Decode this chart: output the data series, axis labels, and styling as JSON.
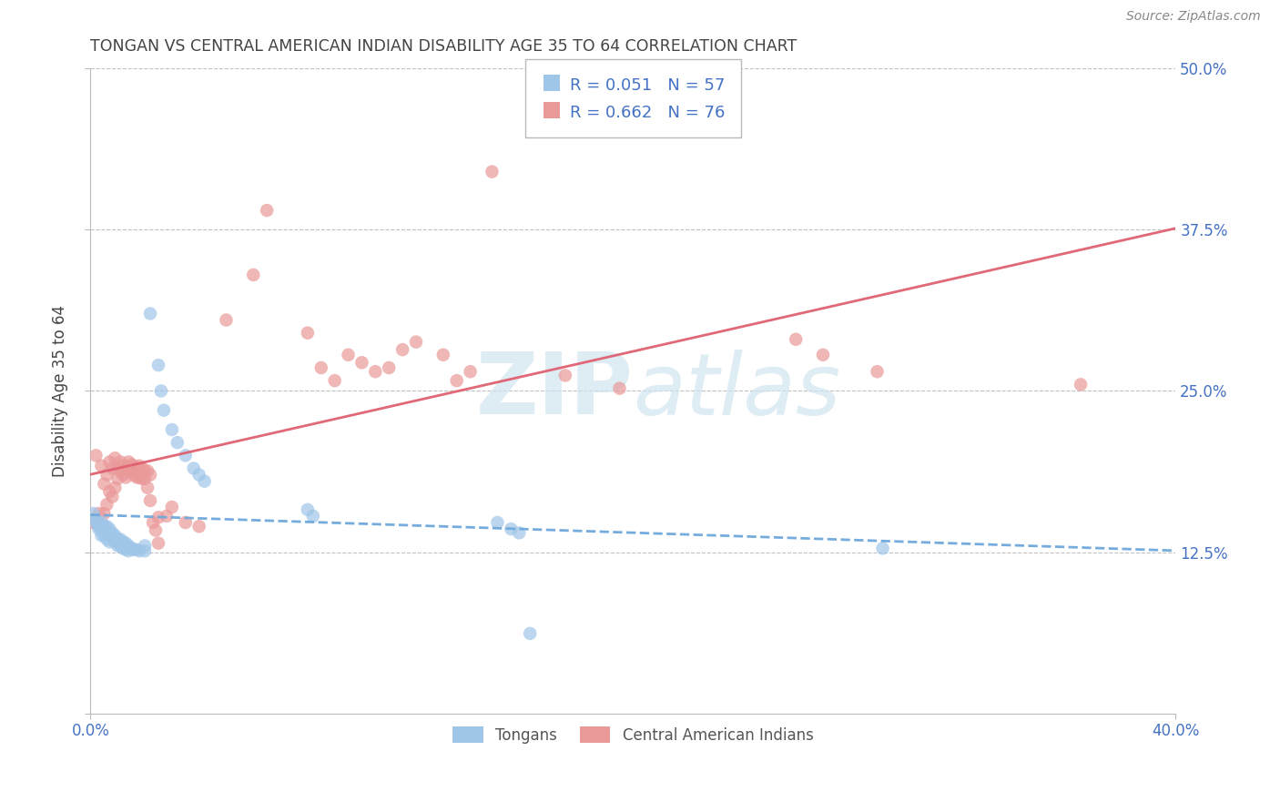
{
  "title": "TONGAN VS CENTRAL AMERICAN INDIAN DISABILITY AGE 35 TO 64 CORRELATION CHART",
  "source": "Source: ZipAtlas.com",
  "ylabel": "Disability Age 35 to 64",
  "xmin": 0.0,
  "xmax": 0.4,
  "ymin": 0.0,
  "ymax": 0.5,
  "yticks": [
    0.0,
    0.125,
    0.25,
    0.375,
    0.5
  ],
  "ytick_labels": [
    "",
    "12.5%",
    "25.0%",
    "37.5%",
    "50.0%"
  ],
  "xticks": [
    0.0,
    0.4
  ],
  "xtick_labels": [
    "0.0%",
    "40.0%"
  ],
  "tongan_color": "#9fc5e8",
  "central_color": "#ea9999",
  "tongan_line_color": "#6fa8dc",
  "central_line_color": "#e06070",
  "background_color": "#ffffff",
  "grid_color": "#c0c0c0",
  "watermark_color": "#d0e4f0",
  "title_color": "#444444",
  "source_color": "#888888",
  "label_color": "#4472c4",
  "legend_label_color": "#4472c4",
  "tongan_points": [
    [
      0.001,
      0.155
    ],
    [
      0.002,
      0.15
    ],
    [
      0.002,
      0.148
    ],
    [
      0.003,
      0.148
    ],
    [
      0.003,
      0.145
    ],
    [
      0.003,
      0.143
    ],
    [
      0.004,
      0.148
    ],
    [
      0.004,
      0.143
    ],
    [
      0.004,
      0.138
    ],
    [
      0.005,
      0.145
    ],
    [
      0.005,
      0.142
    ],
    [
      0.005,
      0.138
    ],
    [
      0.006,
      0.145
    ],
    [
      0.006,
      0.14
    ],
    [
      0.006,
      0.135
    ],
    [
      0.007,
      0.143
    ],
    [
      0.007,
      0.138
    ],
    [
      0.007,
      0.133
    ],
    [
      0.008,
      0.14
    ],
    [
      0.008,
      0.136
    ],
    [
      0.009,
      0.138
    ],
    [
      0.009,
      0.133
    ],
    [
      0.01,
      0.135
    ],
    [
      0.01,
      0.13
    ],
    [
      0.011,
      0.135
    ],
    [
      0.011,
      0.13
    ],
    [
      0.012,
      0.133
    ],
    [
      0.012,
      0.128
    ],
    [
      0.013,
      0.132
    ],
    [
      0.013,
      0.127
    ],
    [
      0.014,
      0.13
    ],
    [
      0.014,
      0.126
    ],
    [
      0.015,
      0.128
    ],
    [
      0.015,
      0.128
    ],
    [
      0.016,
      0.127
    ],
    [
      0.017,
      0.127
    ],
    [
      0.018,
      0.126
    ],
    [
      0.02,
      0.126
    ],
    [
      0.02,
      0.13
    ],
    [
      0.022,
      0.31
    ],
    [
      0.025,
      0.27
    ],
    [
      0.026,
      0.25
    ],
    [
      0.027,
      0.235
    ],
    [
      0.03,
      0.22
    ],
    [
      0.032,
      0.21
    ],
    [
      0.035,
      0.2
    ],
    [
      0.038,
      0.19
    ],
    [
      0.04,
      0.185
    ],
    [
      0.042,
      0.18
    ],
    [
      0.08,
      0.158
    ],
    [
      0.082,
      0.153
    ],
    [
      0.15,
      0.148
    ],
    [
      0.155,
      0.143
    ],
    [
      0.158,
      0.14
    ],
    [
      0.162,
      0.062
    ],
    [
      0.292,
      0.128
    ]
  ],
  "central_points": [
    [
      0.001,
      0.148
    ],
    [
      0.002,
      0.2
    ],
    [
      0.003,
      0.155
    ],
    [
      0.004,
      0.192
    ],
    [
      0.005,
      0.178
    ],
    [
      0.005,
      0.155
    ],
    [
      0.006,
      0.185
    ],
    [
      0.006,
      0.162
    ],
    [
      0.007,
      0.195
    ],
    [
      0.007,
      0.172
    ],
    [
      0.008,
      0.19
    ],
    [
      0.008,
      0.168
    ],
    [
      0.009,
      0.198
    ],
    [
      0.009,
      0.175
    ],
    [
      0.01,
      0.19
    ],
    [
      0.01,
      0.182
    ],
    [
      0.011,
      0.195
    ],
    [
      0.011,
      0.188
    ],
    [
      0.012,
      0.192
    ],
    [
      0.012,
      0.185
    ],
    [
      0.013,
      0.19
    ],
    [
      0.013,
      0.183
    ],
    [
      0.014,
      0.195
    ],
    [
      0.014,
      0.188
    ],
    [
      0.015,
      0.193
    ],
    [
      0.015,
      0.188
    ],
    [
      0.016,
      0.192
    ],
    [
      0.016,
      0.185
    ],
    [
      0.017,
      0.19
    ],
    [
      0.017,
      0.183
    ],
    [
      0.018,
      0.192
    ],
    [
      0.018,
      0.183
    ],
    [
      0.019,
      0.19
    ],
    [
      0.019,
      0.182
    ],
    [
      0.02,
      0.188
    ],
    [
      0.02,
      0.182
    ],
    [
      0.021,
      0.188
    ],
    [
      0.021,
      0.175
    ],
    [
      0.022,
      0.185
    ],
    [
      0.022,
      0.165
    ],
    [
      0.023,
      0.148
    ],
    [
      0.024,
      0.142
    ],
    [
      0.025,
      0.152
    ],
    [
      0.025,
      0.132
    ],
    [
      0.028,
      0.153
    ],
    [
      0.03,
      0.16
    ],
    [
      0.035,
      0.148
    ],
    [
      0.04,
      0.145
    ],
    [
      0.05,
      0.305
    ],
    [
      0.06,
      0.34
    ],
    [
      0.065,
      0.39
    ],
    [
      0.08,
      0.295
    ],
    [
      0.085,
      0.268
    ],
    [
      0.09,
      0.258
    ],
    [
      0.095,
      0.278
    ],
    [
      0.1,
      0.272
    ],
    [
      0.105,
      0.265
    ],
    [
      0.11,
      0.268
    ],
    [
      0.115,
      0.282
    ],
    [
      0.12,
      0.288
    ],
    [
      0.13,
      0.278
    ],
    [
      0.135,
      0.258
    ],
    [
      0.14,
      0.265
    ],
    [
      0.148,
      0.42
    ],
    [
      0.175,
      0.262
    ],
    [
      0.195,
      0.252
    ],
    [
      0.26,
      0.29
    ],
    [
      0.27,
      0.278
    ],
    [
      0.29,
      0.265
    ],
    [
      0.365,
      0.255
    ]
  ]
}
